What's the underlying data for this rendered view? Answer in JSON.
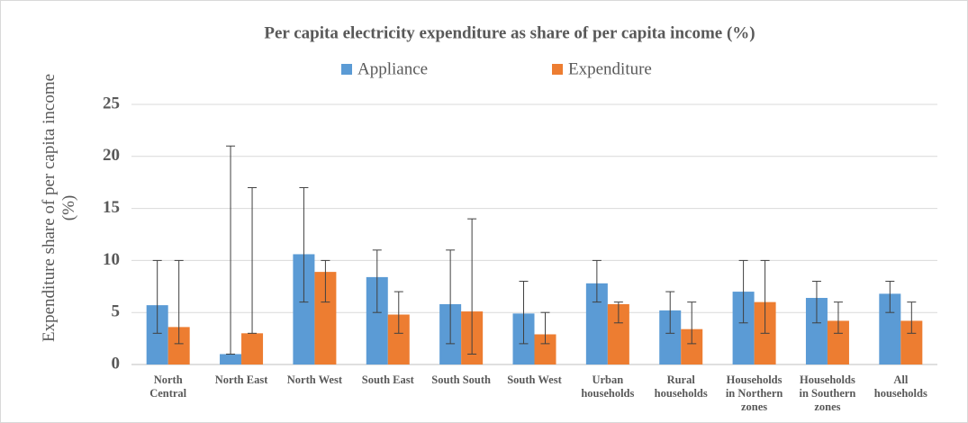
{
  "chart_data": {
    "type": "bar",
    "title": "Per capita electricity expenditure as share of per capita income (%)",
    "y_label": "Expenditure share of per capita income (%)",
    "categories": [
      "North Central",
      "North East",
      "North West",
      "South East",
      "South South",
      "South West",
      "Urban households",
      "Rural households",
      "Households in Northern zones",
      "Households in Southern zones",
      "All households"
    ],
    "series": [
      {
        "name": "Appliance",
        "color": "#5b9bd5",
        "values": [
          5.7,
          1.0,
          10.6,
          8.4,
          5.8,
          4.9,
          7.8,
          5.2,
          7.0,
          6.4,
          6.8
        ],
        "error_low": [
          3,
          1,
          6,
          5,
          2,
          2,
          6,
          3,
          4,
          4,
          5
        ],
        "error_high": [
          10,
          21,
          17,
          11,
          11,
          8,
          10,
          7,
          10,
          8,
          8
        ]
      },
      {
        "name": "Expenditure",
        "color": "#ed7d31",
        "values": [
          3.6,
          3.0,
          8.9,
          4.8,
          5.1,
          2.9,
          5.8,
          3.4,
          6.0,
          4.2,
          4.2
        ],
        "error_low": [
          2,
          3,
          6,
          3,
          1,
          2,
          4,
          2,
          3,
          3,
          3
        ],
        "error_high": [
          10,
          17,
          10,
          7,
          14,
          5,
          6,
          6,
          10,
          6,
          6
        ]
      }
    ],
    "ylim": [
      0,
      25
    ],
    "yticks": [
      0,
      5,
      10,
      15,
      20,
      25
    ],
    "grid": true,
    "legend": "top"
  }
}
